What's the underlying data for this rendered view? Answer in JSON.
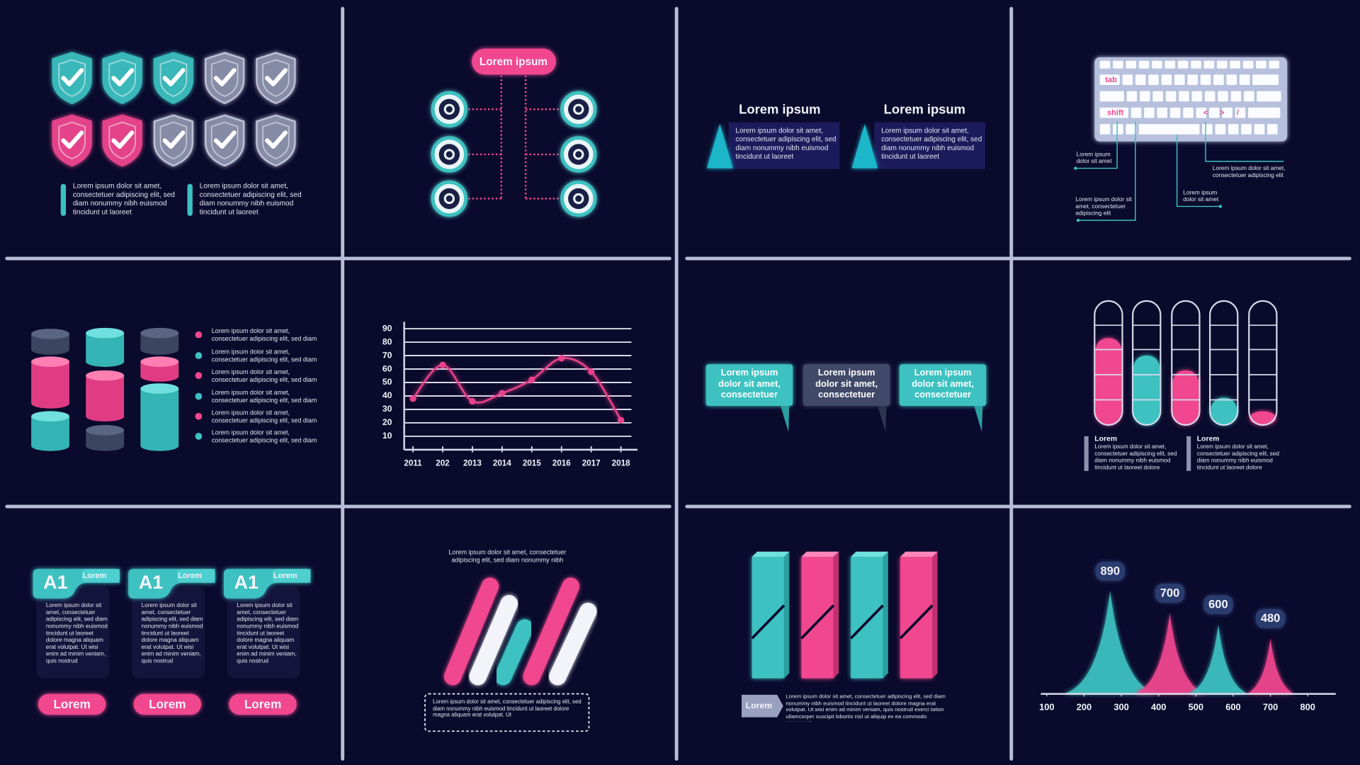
{
  "shields": {
    "texts": [
      "Lorem ipsum dolor sit amet, consectetuer adipiscing elit, sed diam nonummy nibh euismod tincidunt ut laoreet",
      "Lorem ipsum dolor sit amet, consectetuer adipiscing elit, sed diam nonummy nibh euismod tincidunt ut laoreet"
    ]
  },
  "org_chart": {
    "title": "Lorem ipsum"
  },
  "cards": [
    {
      "title": "Lorem ipsum",
      "text": "Lorem ipsum dolor sit amet, consectetuer adipiscing elit, sed diam nonummy nibh euismod tincidunt ut laoreet"
    },
    {
      "title": "Lorem ipsum",
      "text": "Lorem ipsum dolor sit amet, consectetuer adipiscing elit, sed diam nonummy nibh euismod tincidunt ut laoreet"
    }
  ],
  "keyboard": {
    "keys": [
      "tab",
      "shift",
      "<",
      ">",
      "/"
    ],
    "callouts": [
      "Lorem ipsum dolor sit amet",
      "Lorem ipsum dolor sit amet, consectetuer adipiscing elit",
      "Lorem ipsum dolor sit amet",
      "Lorem ipsum dolor sit amet, consectetuer adipiscing elit"
    ]
  },
  "cylinders": {
    "legend": [
      "Lorem ipsum dolor sit amet, consectetuer adipiscing elit, sed diam",
      "Lorem ipsum dolor sit amet, consectetuer adipiscing elit, sed diam",
      "Lorem ipsum dolor sit amet, consectetuer adipiscing elit, sed diam",
      "Lorem ipsum dolor sit amet, consectetuer adipiscing elit, sed diam",
      "Lorem ipsum dolor sit amet, consectetuer adipiscing elit, sed diam",
      "Lorem ipsum dolor sit amet, consectetuer adipiscing elit, sed diam"
    ]
  },
  "line_chart": {
    "type": "line",
    "categories": [
      "2011",
      "202",
      "2013",
      "2014",
      "2015",
      "2016",
      "2017",
      "2018"
    ],
    "values": [
      38,
      63,
      36,
      42,
      52,
      68,
      58,
      22
    ],
    "ylim": [
      0,
      90
    ],
    "yticks": [
      10,
      20,
      30,
      40,
      50,
      60,
      70,
      80,
      90
    ],
    "color": "#e8438a",
    "grid": true
  },
  "bubbles": [
    "Lorem ipsum dolor sit amet, consectetuer",
    "Lorem ipsum dolor sit amet, consectetuer",
    "Lorem ipsum dolor sit amet, consectetuer"
  ],
  "tubes": {
    "values": [
      70,
      56,
      44,
      22,
      11
    ],
    "ylim": [
      0,
      100
    ],
    "colors": [
      "#f0468f",
      "#3cc1c1",
      "#f0468f",
      "#3cc1c1",
      "#f0468f"
    ],
    "notes": [
      {
        "title": "Lorem",
        "text": "Lorem ipsum dolor sit amet, consectetuer adipiscing elit, sed diam nonummy nibh euismod tincidunt ut laoreet dolore"
      },
      {
        "title": "Lorem",
        "text": "Lorem ipsum dolor sit amet, consectetuer adipiscing elit, sed diam nonummy nibh euismod tincidunt ut laoreet dolore"
      }
    ]
  },
  "a1_cards": [
    {
      "badge": "A1",
      "tab": "Lorem",
      "text": "Lorem ipsum dolor sit amet, consectetuer adipiscing elit, sed diam nonummy nibh euismod tincidunt ut laoreet dolore magna aliquam erat volutpat. Ut wisi enim ad minim veniam, quis nostrud",
      "button": "Lorem"
    },
    {
      "badge": "A1",
      "tab": "Lorem",
      "text": "Lorem ipsum dolor sit amet, consectetuer adipiscing elit, sed diam nonummy nibh euismod tincidunt ut laoreet dolore magna aliquam erat volutpat. Ut wisi enim ad minim veniam, quis nostrud",
      "button": "Lorem"
    },
    {
      "badge": "A1",
      "tab": "Lorem",
      "text": "Lorem ipsum dolor sit amet, consectetuer adipiscing elit, sed diam nonummy nibh euismod tincidunt ut laoreet dolore magna aliquam erat volutpat. Ut wisi enim ad minim veniam, quis nostrud",
      "button": "Lorem"
    }
  ],
  "slanted_bars": {
    "caption": "Lorem ipsum dolor sit amet, consectetuer adipiscing elit, sed diam nonummy nibh",
    "note": "Lorem ipsum dolor sit amet, consectetuer adipiscing elit, sed diam nonummy nibh euismod tincidunt ut laoreet dolore magna aliquam erat volutpat. Ut"
  },
  "block_bars": {
    "tag": "Lorem",
    "text": "Lorem ipsum dolor sit amet, consectetuer adipiscing elit, sed diam nonummy nibh euismod tincidunt ut laoreet dolore magna erat volutpat. Ut wisi enim ad minim veniam, quis nostrud exerci tation ullamcorper suscipit lobortis nisl ut aliquip ex ea commodo consequat."
  },
  "mountain_chart": {
    "type": "area",
    "x": [
      270,
      430,
      560,
      700
    ],
    "values": [
      890,
      700,
      600,
      480
    ],
    "xlim": [
      84,
      875
    ],
    "ylim": [
      0,
      1000
    ],
    "xticks": [
      100,
      200,
      300,
      400,
      500,
      600,
      700,
      800
    ],
    "colors": [
      "#3cc1c1",
      "#f0468f",
      "#3cc1c1",
      "#f0468f"
    ]
  }
}
